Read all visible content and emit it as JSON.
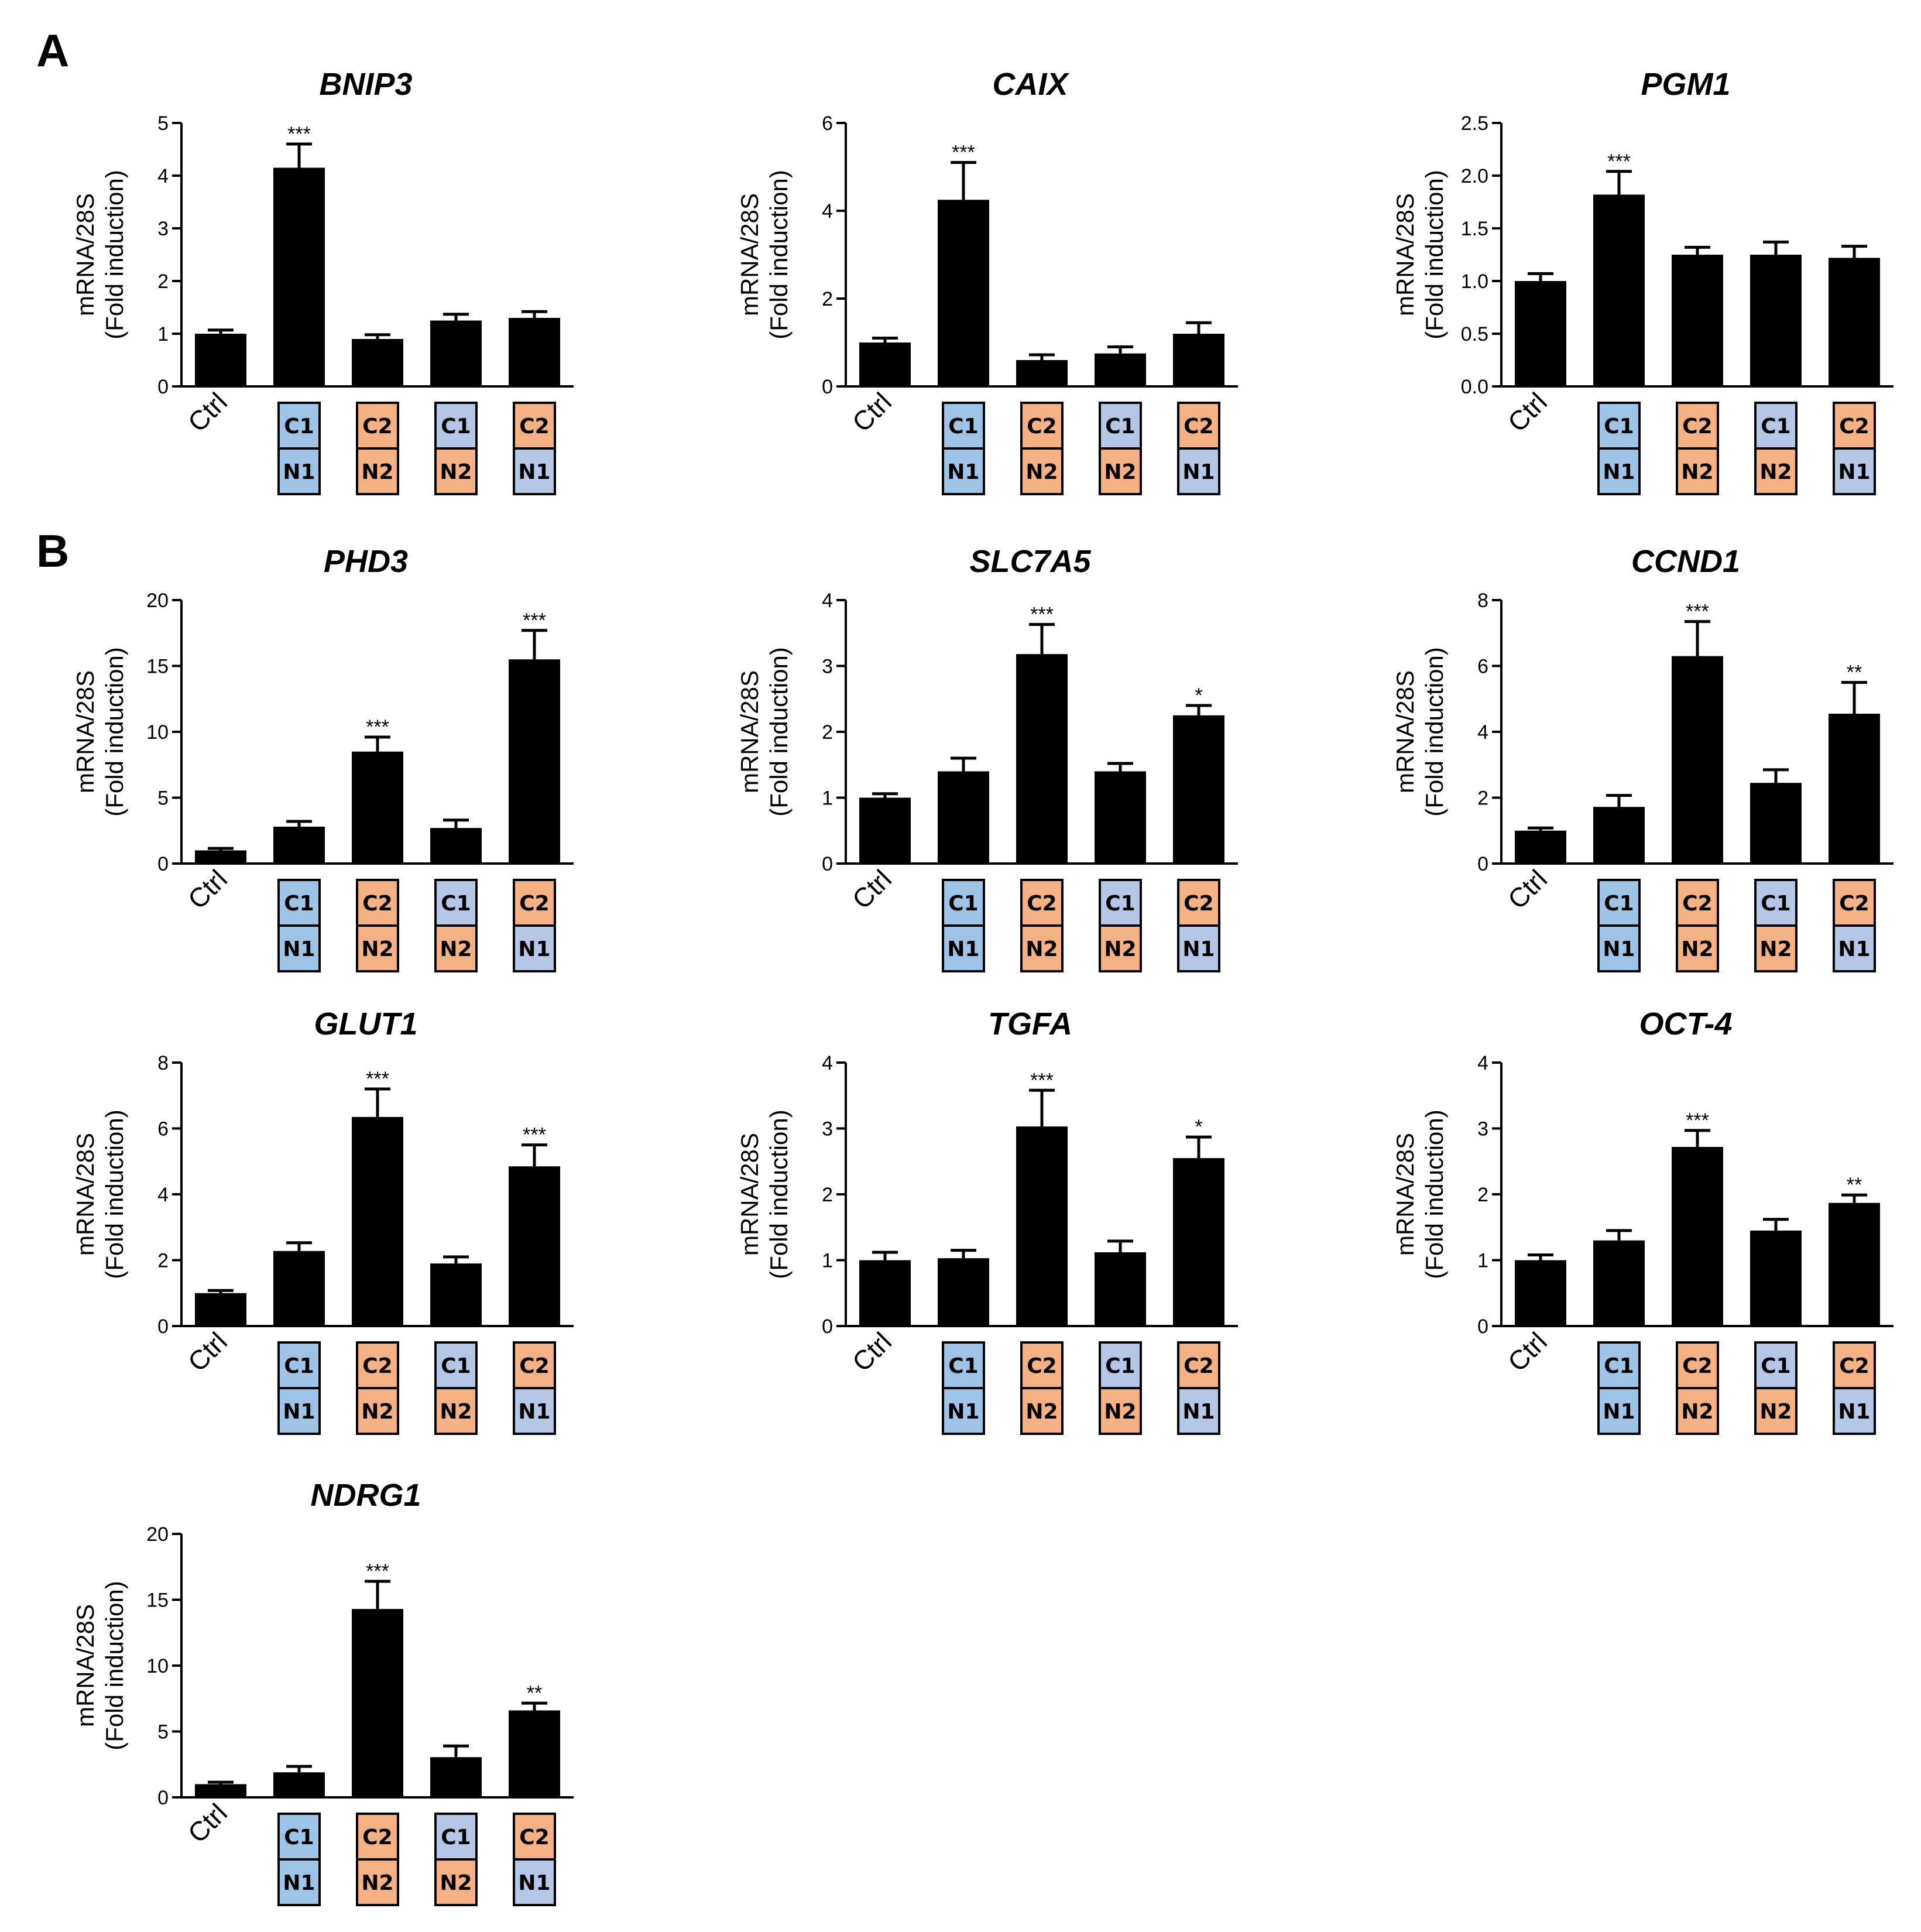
{
  "panels": [
    {
      "letter": "A",
      "row": 0
    },
    {
      "letter": "B",
      "row": 1
    }
  ],
  "colors": {
    "bar": "#000000",
    "blue_box": "#9dc3e6",
    "lavender_box": "#b4c7e7",
    "orange_box": "#f4b183"
  },
  "categories": [
    "Ctrl",
    "C1/N1",
    "C2/N2",
    "C1/N2",
    "C2/N1"
  ],
  "condition_boxes": [
    {
      "top": "C1",
      "bottom": "N1",
      "top_color": "blue_box",
      "bottom_color": "blue_box"
    },
    {
      "top": "C2",
      "bottom": "N2",
      "top_color": "orange_box",
      "bottom_color": "orange_box"
    },
    {
      "top": "C1",
      "bottom": "N2",
      "top_color": "lavender_box",
      "bottom_color": "orange_box"
    },
    {
      "top": "C2",
      "bottom": "N1",
      "top_color": "orange_box",
      "bottom_color": "lavender_box"
    }
  ],
  "chart_data": [
    {
      "type": "bar",
      "title": "BNIP3",
      "ylabel_line1": "mRNA/28S",
      "ylabel_line2": "(Fold induction)",
      "ylim": [
        0,
        5
      ],
      "yticks": [
        "0",
        "1",
        "2",
        "3",
        "4",
        "5"
      ],
      "categories": [
        "Ctrl",
        "C1/N1",
        "C2/N2",
        "C1/N2",
        "C2/N1"
      ],
      "values": [
        1.0,
        4.15,
        0.9,
        1.25,
        1.3
      ],
      "errors": [
        0.07,
        0.45,
        0.08,
        0.12,
        0.12
      ],
      "significance": [
        "",
        "***",
        "",
        "",
        ""
      ]
    },
    {
      "type": "bar",
      "title": "CAIX",
      "ylabel_line1": "mRNA/28S",
      "ylabel_line2": "(Fold induction)",
      "ylim": [
        0,
        6
      ],
      "yticks": [
        "0",
        "2",
        "4",
        "6"
      ],
      "categories": [
        "Ctrl",
        "C1/N1",
        "C2/N2",
        "C1/N2",
        "C2/N1"
      ],
      "values": [
        1.0,
        4.25,
        0.6,
        0.75,
        1.2
      ],
      "errors": [
        0.1,
        0.85,
        0.12,
        0.15,
        0.25
      ],
      "significance": [
        "",
        "***",
        "",
        "",
        ""
      ]
    },
    {
      "type": "bar",
      "title": "PGM1",
      "ylabel_line1": "mRNA/28S",
      "ylabel_line2": "(Fold induction)",
      "ylim": [
        0,
        2.5
      ],
      "yticks": [
        "0.0",
        "0.5",
        "1.0",
        "1.5",
        "2.0",
        "2.5"
      ],
      "categories": [
        "Ctrl",
        "C1/N1",
        "C2/N2",
        "C1/N2",
        "C2/N1"
      ],
      "values": [
        1.0,
        1.82,
        1.25,
        1.25,
        1.22
      ],
      "errors": [
        0.07,
        0.22,
        0.07,
        0.12,
        0.11
      ],
      "significance": [
        "",
        "***",
        "",
        "",
        ""
      ]
    },
    {
      "type": "bar",
      "title": "PHD3",
      "ylabel_line1": "mRNA/28S",
      "ylabel_line2": "(Fold induction)",
      "ylim": [
        0,
        20
      ],
      "yticks": [
        "0",
        "5",
        "10",
        "15",
        "20"
      ],
      "categories": [
        "Ctrl",
        "C1/N1",
        "C2/N2",
        "C1/N2",
        "C2/N1"
      ],
      "values": [
        1.0,
        2.8,
        8.5,
        2.7,
        15.5
      ],
      "errors": [
        0.15,
        0.4,
        1.1,
        0.6,
        2.2
      ],
      "significance": [
        "",
        "",
        "***",
        "",
        "***"
      ]
    },
    {
      "type": "bar",
      "title": "SLC7A5",
      "ylabel_line1": "mRNA/28S",
      "ylabel_line2": "(Fold induction)",
      "ylim": [
        0,
        4
      ],
      "yticks": [
        "0",
        "1",
        "2",
        "3",
        "4"
      ],
      "categories": [
        "Ctrl",
        "C1/N1",
        "C2/N2",
        "C1/N2",
        "C2/N1"
      ],
      "values": [
        1.0,
        1.4,
        3.18,
        1.4,
        2.25
      ],
      "errors": [
        0.06,
        0.2,
        0.45,
        0.12,
        0.15
      ],
      "significance": [
        "",
        "",
        "***",
        "",
        "*"
      ]
    },
    {
      "type": "bar",
      "title": "CCND1",
      "ylabel_line1": "mRNA/28S",
      "ylabel_line2": "(Fold induction)",
      "ylim": [
        0,
        8
      ],
      "yticks": [
        "0",
        "2",
        "4",
        "6",
        "8"
      ],
      "categories": [
        "Ctrl",
        "C1/N1",
        "C2/N2",
        "C1/N2",
        "C2/N1"
      ],
      "values": [
        1.0,
        1.72,
        6.3,
        2.45,
        4.55
      ],
      "errors": [
        0.08,
        0.35,
        1.05,
        0.4,
        0.95
      ],
      "significance": [
        "",
        "",
        "***",
        "",
        "**"
      ]
    },
    {
      "type": "bar",
      "title": "GLUT1",
      "ylabel_line1": "mRNA/28S",
      "ylabel_line2": "(Fold induction)",
      "ylim": [
        0,
        8
      ],
      "yticks": [
        "0",
        "2",
        "4",
        "6",
        "8"
      ],
      "categories": [
        "Ctrl",
        "C1/N1",
        "C2/N2",
        "C1/N2",
        "C2/N1"
      ],
      "values": [
        1.0,
        2.28,
        6.35,
        1.9,
        4.85
      ],
      "errors": [
        0.08,
        0.25,
        0.85,
        0.2,
        0.65
      ],
      "significance": [
        "",
        "",
        "***",
        "",
        "***"
      ]
    },
    {
      "type": "bar",
      "title": "TGFA",
      "ylabel_line1": "mRNA/28S",
      "ylabel_line2": "(Fold induction)",
      "ylim": [
        0,
        4
      ],
      "yticks": [
        "0",
        "1",
        "2",
        "3",
        "4"
      ],
      "categories": [
        "Ctrl",
        "C1/N1",
        "C2/N2",
        "C1/N2",
        "C2/N1"
      ],
      "values": [
        1.0,
        1.03,
        3.03,
        1.12,
        2.55
      ],
      "errors": [
        0.12,
        0.12,
        0.55,
        0.17,
        0.32
      ],
      "significance": [
        "",
        "",
        "***",
        "",
        "*"
      ]
    },
    {
      "type": "bar",
      "title": "OCT-4",
      "ylabel_line1": "mRNA/28S",
      "ylabel_line2": "(Fold induction)",
      "ylim": [
        0,
        4
      ],
      "yticks": [
        "0",
        "1",
        "2",
        "3",
        "4"
      ],
      "categories": [
        "Ctrl",
        "C1/N1",
        "C2/N2",
        "C1/N2",
        "C2/N1"
      ],
      "values": [
        1.0,
        1.3,
        2.72,
        1.45,
        1.87
      ],
      "errors": [
        0.08,
        0.15,
        0.25,
        0.17,
        0.12
      ],
      "significance": [
        "",
        "",
        "***",
        "",
        "**"
      ]
    },
    {
      "type": "bar",
      "title": "NDRG1",
      "ylabel_line1": "mRNA/28S",
      "ylabel_line2": "(Fold induction)",
      "ylim": [
        0,
        20
      ],
      "yticks": [
        "0",
        "5",
        "10",
        "15",
        "20"
      ],
      "categories": [
        "Ctrl",
        "C1/N1",
        "C2/N2",
        "C1/N2",
        "C2/N1"
      ],
      "values": [
        1.0,
        1.9,
        14.3,
        3.05,
        6.6
      ],
      "errors": [
        0.15,
        0.45,
        2.1,
        0.85,
        0.55
      ],
      "significance": [
        "",
        "",
        "***",
        "",
        "**"
      ]
    }
  ]
}
